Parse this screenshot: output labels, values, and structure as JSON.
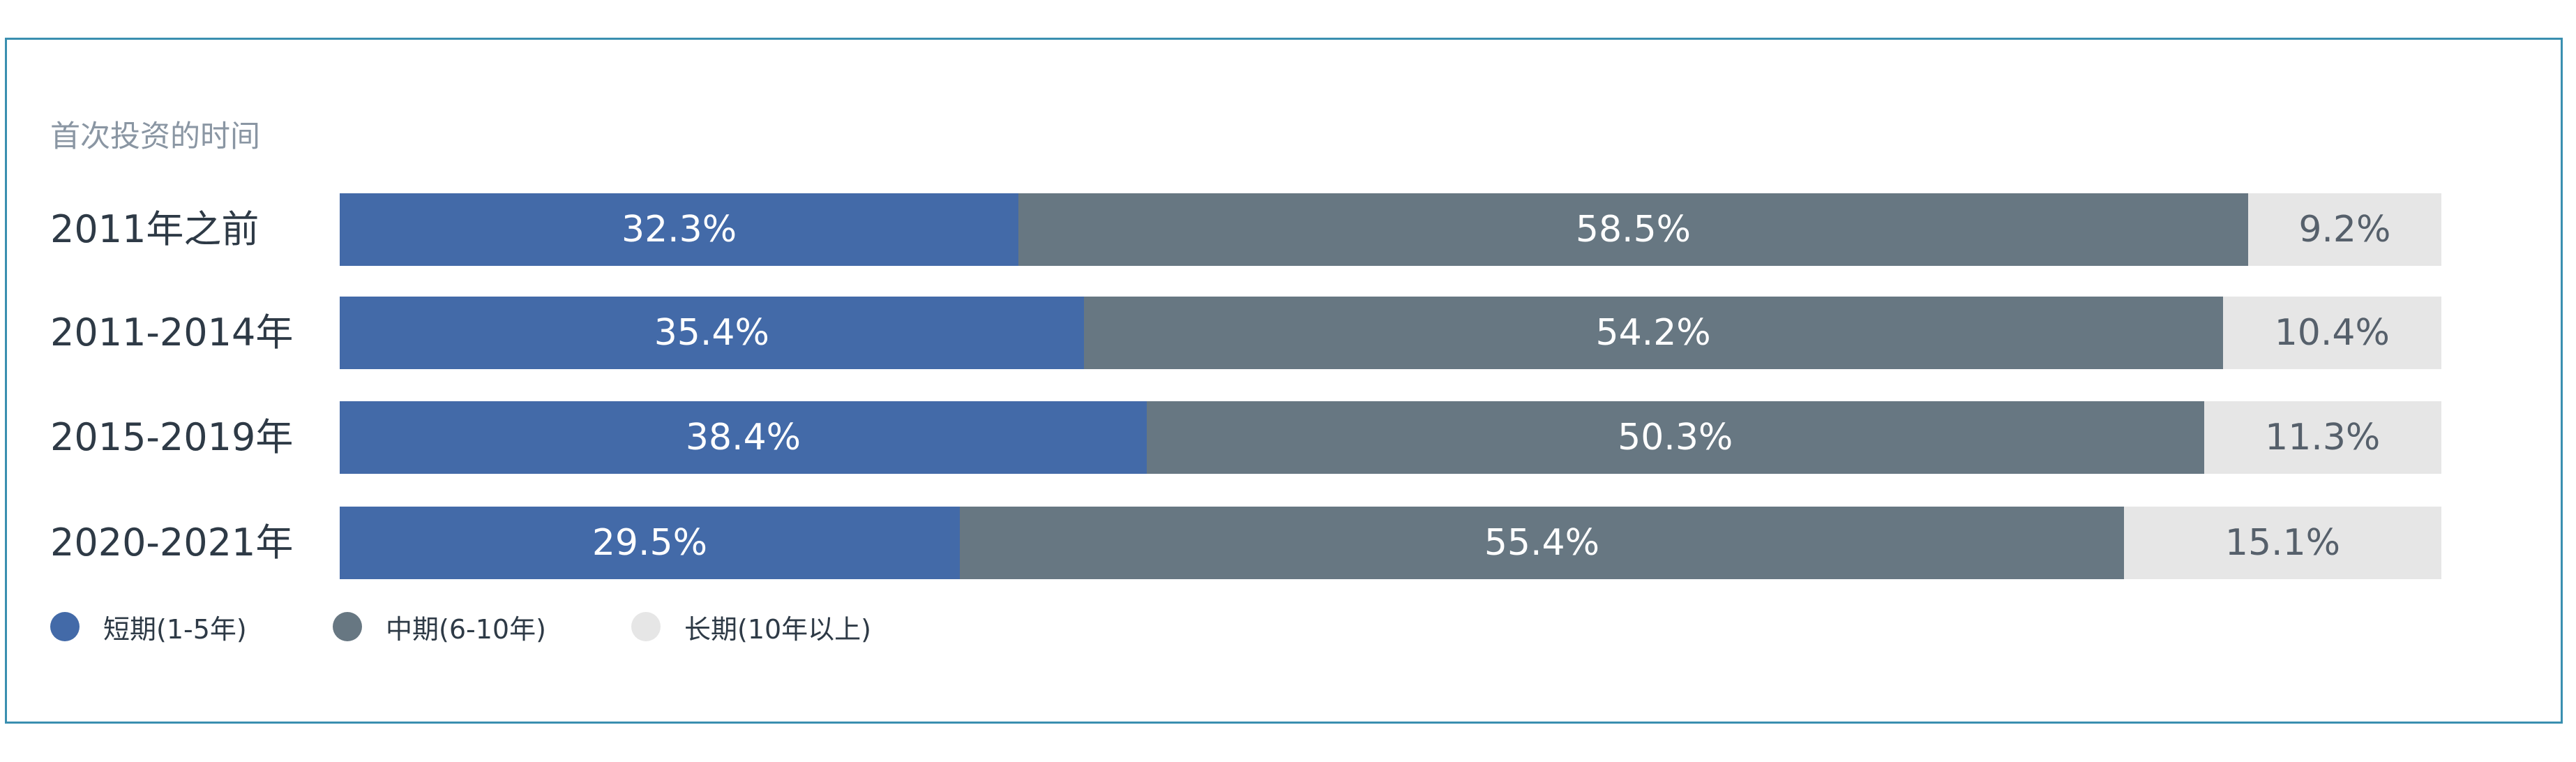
{
  "chart_data": {
    "type": "bar",
    "orientation": "horizontal",
    "stacked": true,
    "percent": true,
    "subtitle": "首次投资的时间",
    "categories": [
      "2011年之前",
      "2011-2014年",
      "2015-2019年",
      "2020-2021年"
    ],
    "series": [
      {
        "name": "短期(1-5年)",
        "values": [
          32.3,
          35.4,
          38.4,
          29.5
        ],
        "color": "#436aa8"
      },
      {
        "name": "中期(6-10年)",
        "values": [
          58.5,
          54.2,
          50.3,
          55.4
        ],
        "color": "#677782"
      },
      {
        "name": "长期(10年以上)",
        "values": [
          9.2,
          10.4,
          11.3,
          15.1
        ],
        "color": "#e6e6e6"
      }
    ],
    "value_labels": [
      [
        "32.3%",
        "58.5%",
        "9.2%"
      ],
      [
        "35.4%",
        "54.2%",
        "10.4%"
      ],
      [
        "38.4%",
        "50.3%",
        "11.3%"
      ],
      [
        "29.5%",
        "55.4%",
        "15.1%"
      ]
    ],
    "xlim": [
      0,
      100
    ],
    "grid": false,
    "legend_position": "bottom-left"
  }
}
